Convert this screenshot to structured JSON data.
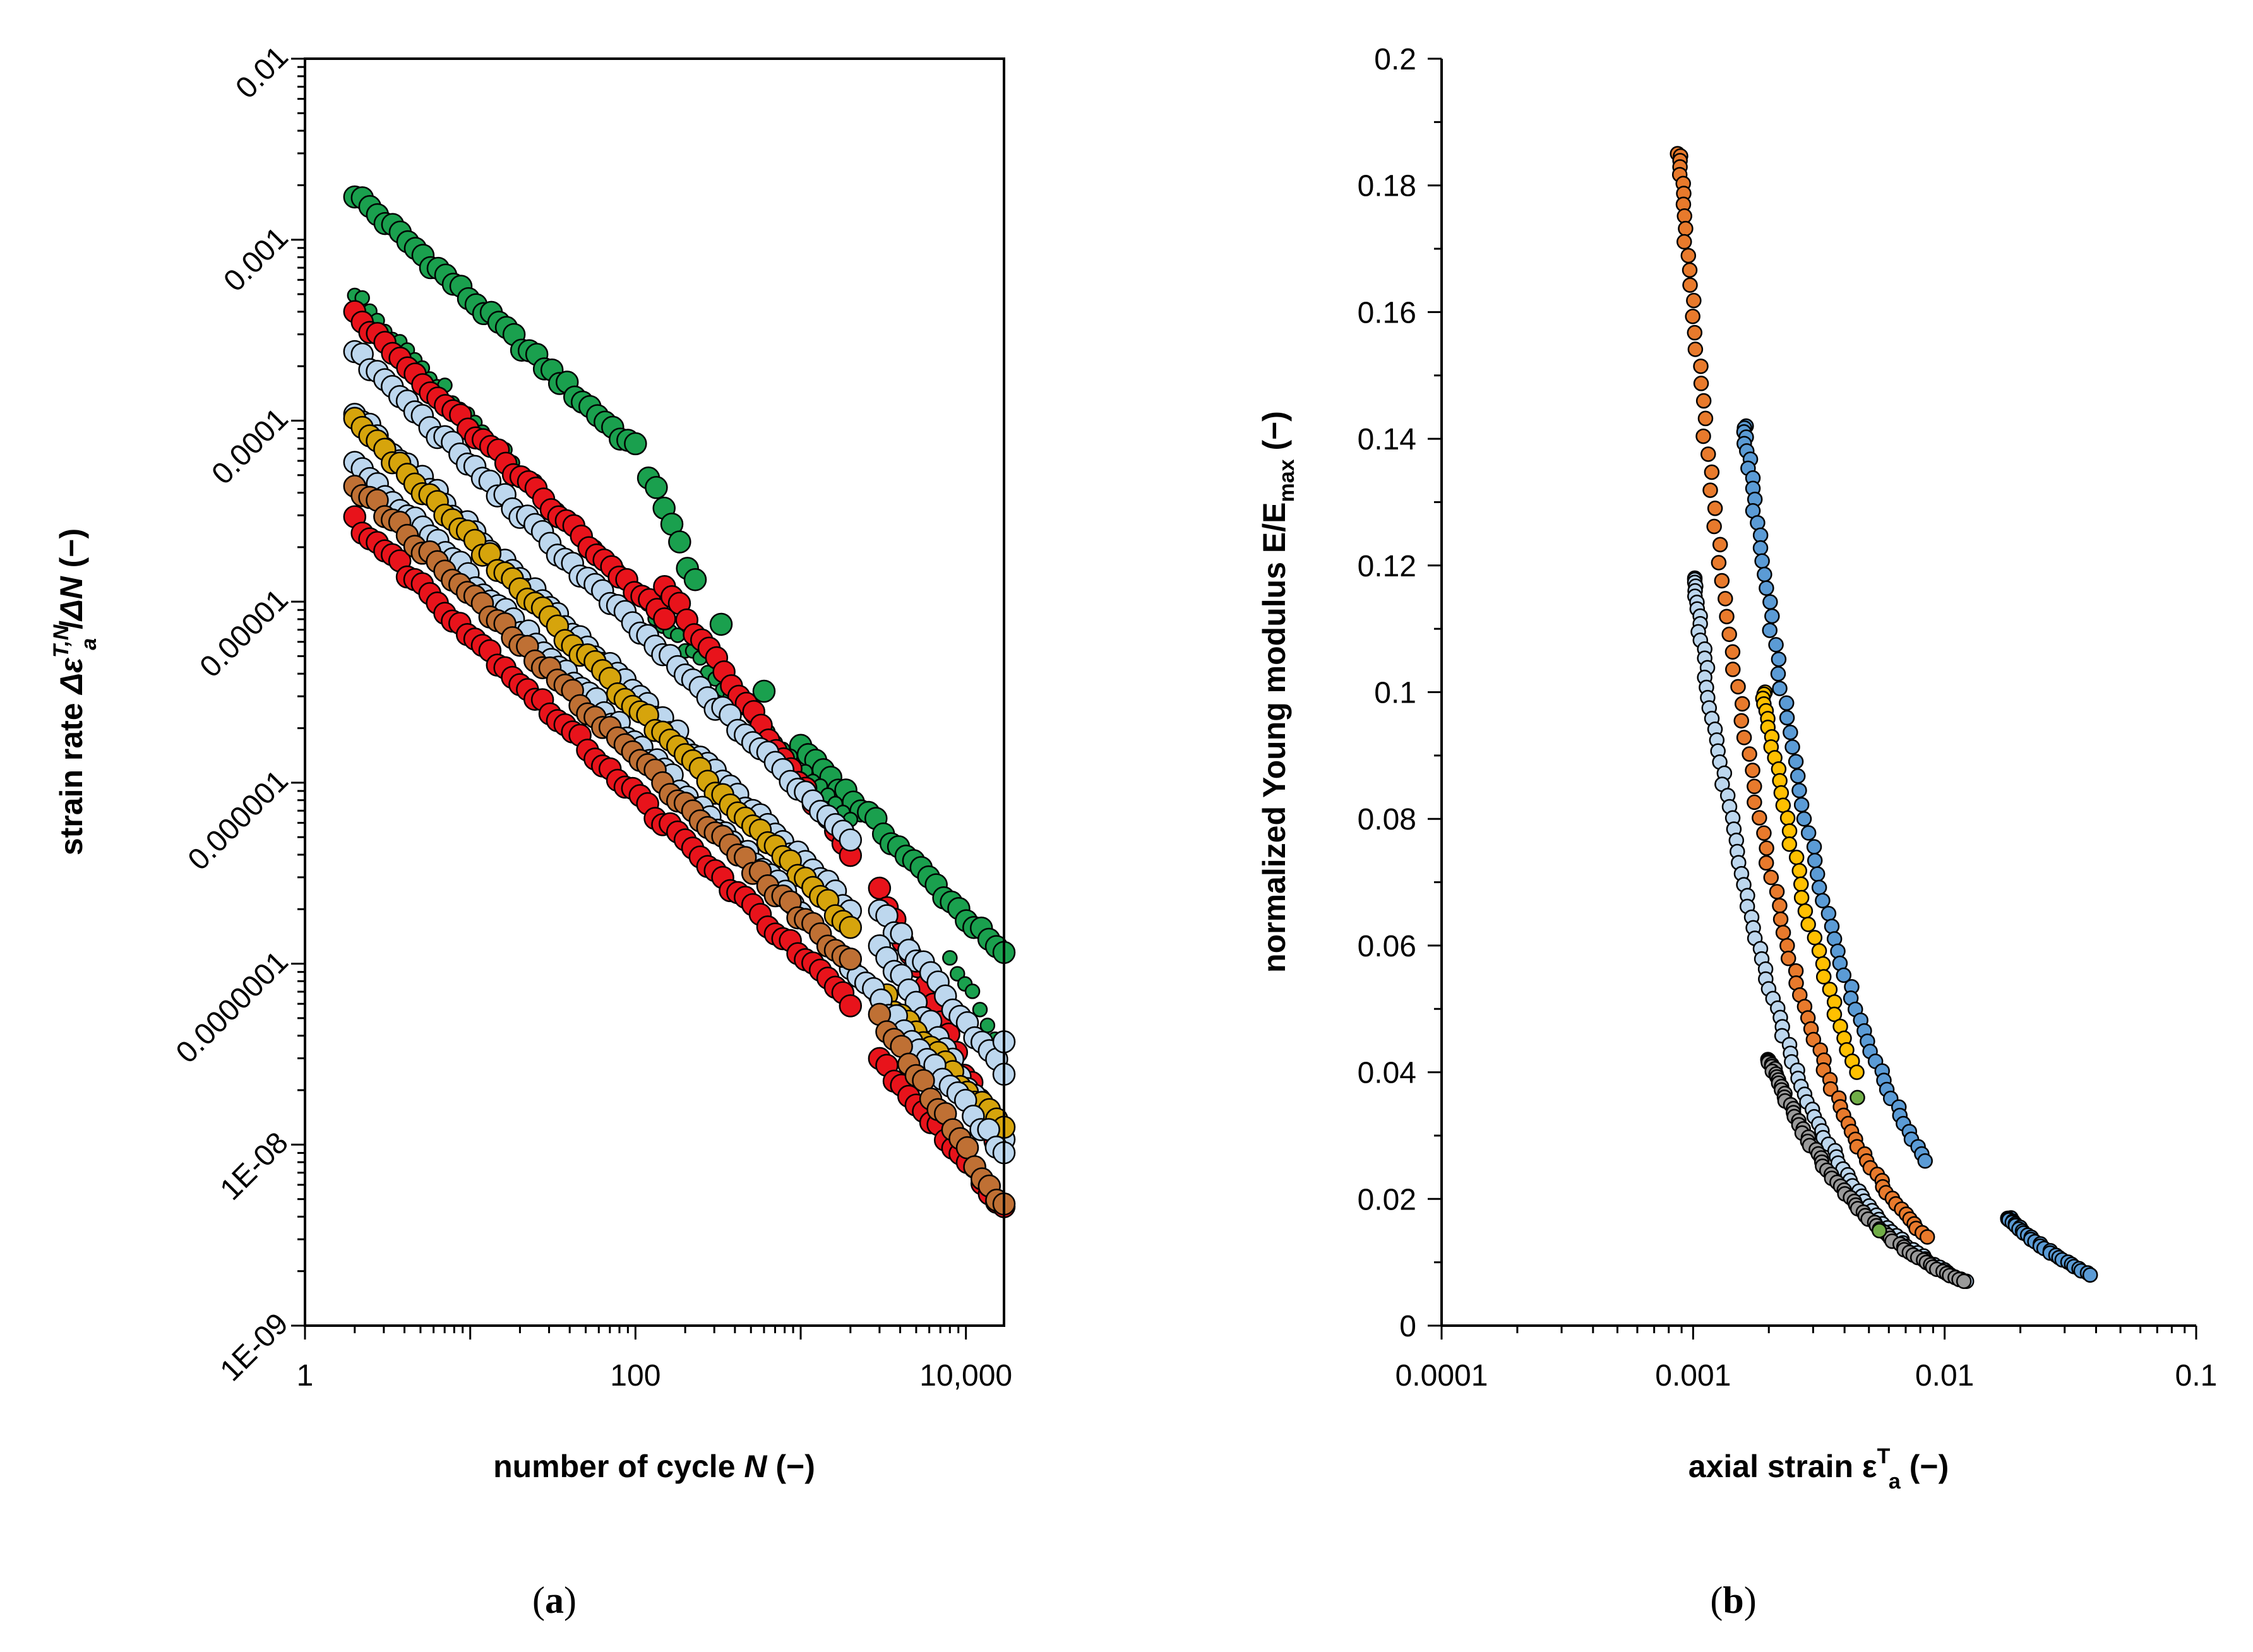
{
  "captions": {
    "a": "a",
    "b": "b"
  },
  "colors": {
    "green": "#1aa04e",
    "red": "#e8131b",
    "lightblue": "#bdd7ee",
    "gold": "#d6a40c",
    "brown": "#bf7034",
    "orange": "#e87a2c",
    "blue": "#5b9bd5",
    "yellow": "#ffc000",
    "gray": "#9a9a9a",
    "olive": "#70ad47"
  },
  "chart_data": [
    {
      "id": "a",
      "type": "scatter",
      "title": "",
      "xlabel": "number of cycle N (−)",
      "ylabel": "strain rate ΔεT,Na/ΔN (−)",
      "xlabel_parts": {
        "pre": "number of cycle ",
        "var": "N",
        "post": " (−)"
      },
      "ylabel_parts": {
        "pre": "strain rate ",
        "delta": "Δε",
        "sup": "T,N",
        "sub": "a",
        "mid": "/",
        "var": "ΔN",
        "post": " (−)"
      },
      "xscale": "log",
      "yscale": "log",
      "xlim": [
        1,
        17000
      ],
      "ylim": [
        1e-09,
        0.01
      ],
      "xticks": [
        {
          "v": 1,
          "label": "1"
        },
        {
          "v": 100,
          "label": "100"
        },
        {
          "v": 10000,
          "label": "10,000"
        }
      ],
      "yticks": [
        {
          "v": 1e-09,
          "label": "1E-09"
        },
        {
          "v": 1e-08,
          "label": "1E-08"
        },
        {
          "v": 1e-07,
          "label": "0.0000001"
        },
        {
          "v": 1e-06,
          "label": "0.000001"
        },
        {
          "v": 1e-05,
          "label": "0.00001"
        },
        {
          "v": 0.0001,
          "label": "0.0001"
        },
        {
          "v": 0.001,
          "label": "0.001"
        },
        {
          "v": 0.01,
          "label": "0.01"
        }
      ],
      "series": [
        {
          "name": "green-upper",
          "color": "green",
          "size": "large",
          "segments": [
            [
              2,
              0.0018,
              100,
              7e-05
            ],
            [
              120,
              5e-05,
              230,
              1.3e-05
            ],
            [
              330,
              7.5e-06
            ],
            [
              600,
              3.2e-06
            ],
            [
              1000,
              1.6e-06,
              17000,
              1.1e-07
            ]
          ]
        },
        {
          "name": "green-mid",
          "color": "green",
          "size": "small",
          "segments": [
            [
              2,
              0.0005,
              2000,
              6e-07
            ],
            [
              8000,
              1.1e-07,
              15000,
              4e-08
            ]
          ]
        },
        {
          "name": "red-upper",
          "color": "red",
          "size": "large",
          "segments": [
            [
              2,
              0.00039,
              150,
              8e-06
            ],
            [
              150,
              1.2e-05,
              2000,
              4e-07
            ],
            [
              3000,
              2.6e-07,
              15000,
              1.1e-08
            ]
          ]
        },
        {
          "name": "lightblue-upper",
          "color": "lightblue",
          "size": "large",
          "segments": [
            [
              2,
              0.00024,
              2000,
              5e-07
            ],
            [
              3000,
              2e-07,
              17000,
              2.5e-08
            ],
            [
              17000,
              3.7e-08
            ]
          ]
        },
        {
          "name": "lightblue-mid",
          "color": "lightblue",
          "size": "large",
          "segments": [
            [
              2,
              0.00011,
              2000,
              2e-07
            ],
            [
              3000,
              1.3e-07,
              17000,
              1e-08
            ]
          ]
        },
        {
          "name": "gold",
          "color": "gold",
          "size": "large",
          "segments": [
            [
              2,
              0.0001,
              2000,
              1.6e-07
            ],
            [
              3000,
              7e-08,
              17000,
              1.2e-08
            ]
          ]
        },
        {
          "name": "lightblue-low",
          "color": "lightblue",
          "size": "large",
          "segments": [
            [
              2,
              6e-05,
              1000,
              2e-07
            ],
            [
              2000,
              1e-07,
              17000,
              9e-09
            ]
          ]
        },
        {
          "name": "red-lower",
          "color": "red",
          "size": "large",
          "segments": [
            [
              2,
              2.8e-05,
              2000,
              6e-08
            ],
            [
              3000,
              3e-08,
              17000,
              4.5e-09
            ]
          ]
        },
        {
          "name": "brown",
          "color": "brown",
          "size": "large",
          "segments": [
            [
              2,
              4.5e-05,
              2000,
              1e-07
            ],
            [
              3000,
              5e-08,
              17000,
              4.5e-09
            ]
          ]
        }
      ]
    },
    {
      "id": "b",
      "type": "scatter",
      "title": "",
      "xlabel": "axial strain εTa (−)",
      "ylabel": "normalized Young modulus E/Emax (−)",
      "xlabel_parts": {
        "pre": "axial strain ε",
        "sup": "T",
        "sub": "a",
        "post": " (−)"
      },
      "ylabel_parts": {
        "pre": "normalized Young modulus E/E",
        "sub": "max",
        "post": " (−)"
      },
      "xscale": "log",
      "yscale": "linear",
      "xlim": [
        0.0001,
        0.1
      ],
      "ylim": [
        0,
        0.2
      ],
      "xticks": [
        {
          "v": 0.0001,
          "label": "0.0001"
        },
        {
          "v": 0.001,
          "label": "0.001"
        },
        {
          "v": 0.01,
          "label": "0.01"
        },
        {
          "v": 0.1,
          "label": "0.1"
        }
      ],
      "yticks": [
        {
          "v": 0,
          "label": "0"
        },
        {
          "v": 0.02,
          "label": "0.02"
        },
        {
          "v": 0.04,
          "label": "0.04"
        },
        {
          "v": 0.06,
          "label": "0.06"
        },
        {
          "v": 0.08,
          "label": "0.08"
        },
        {
          "v": 0.1,
          "label": "0.1"
        },
        {
          "v": 0.12,
          "label": "0.12"
        },
        {
          "v": 0.14,
          "label": "0.14"
        },
        {
          "v": 0.16,
          "label": "0.16"
        },
        {
          "v": 0.18,
          "label": "0.18"
        },
        {
          "v": 0.2,
          "label": "0.2"
        }
      ],
      "series": [
        {
          "name": "orange",
          "color": "orange",
          "curves": [
            [
              0.00088,
              0.185,
              0.0085,
              0.014
            ]
          ]
        },
        {
          "name": "blue-upper",
          "color": "blue",
          "curves": [
            [
              0.0016,
              0.142,
              0.0085,
              0.026
            ]
          ]
        },
        {
          "name": "lightblue",
          "color": "lightblue",
          "curves": [
            [
              0.001,
              0.118,
              0.012,
              0.007
            ]
          ]
        },
        {
          "name": "gold",
          "color": "yellow",
          "curves": [
            [
              0.0019,
              0.1,
              0.0045,
              0.04
            ]
          ]
        },
        {
          "name": "gray",
          "color": "gray",
          "curves": [
            [
              0.002,
              0.042,
              0.012,
              0.007
            ]
          ]
        },
        {
          "name": "blue-lower",
          "color": "blue",
          "curves": [
            [
              0.018,
              0.017,
              0.038,
              0.008
            ]
          ]
        },
        {
          "name": "olive",
          "color": "olive",
          "points": [
            [
              0.0045,
              0.036
            ],
            [
              0.0055,
              0.015
            ]
          ]
        }
      ]
    }
  ]
}
